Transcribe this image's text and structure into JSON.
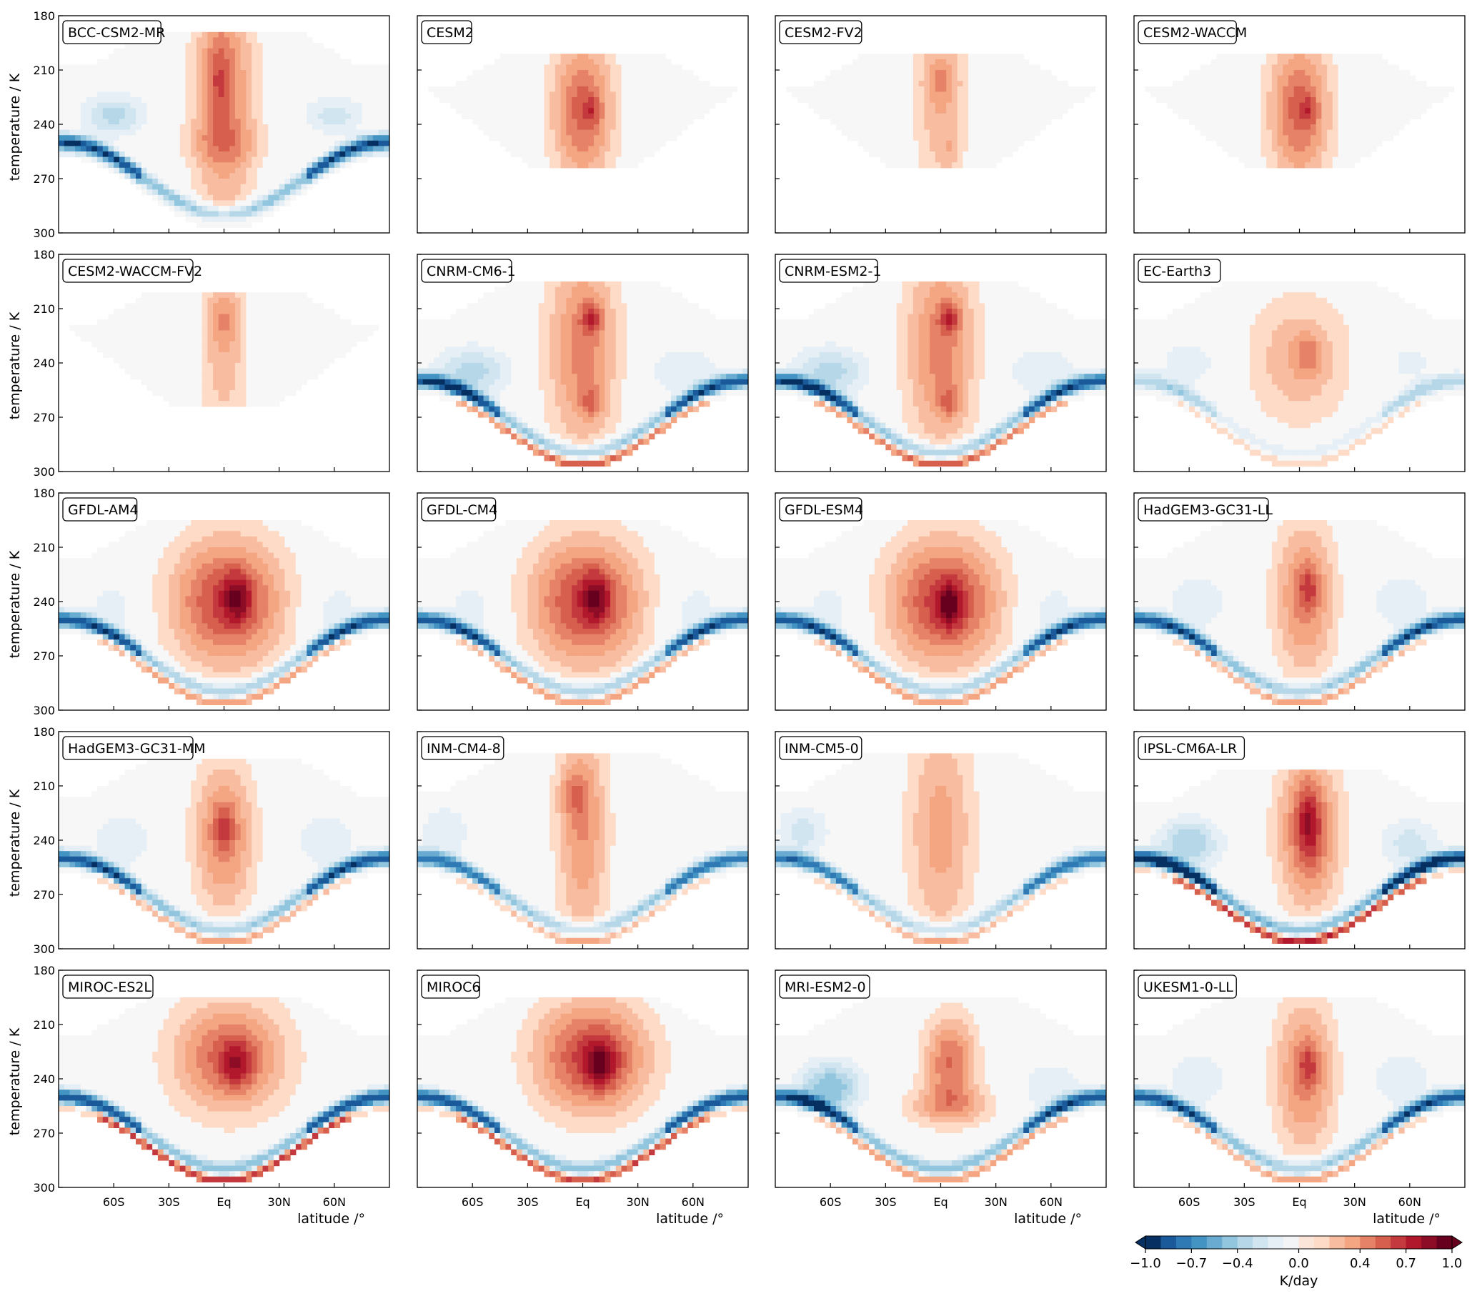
{
  "figure": {
    "ylabel": "temperature / K",
    "xlabel": "latitude /°",
    "cbar_label": "K/day",
    "cbar_ticks": [
      "−1.0",
      "−0.7",
      "−0.4",
      "0.0",
      "0.4",
      "0.7",
      "1.0"
    ]
  },
  "chart_data": {
    "type": "heatmap",
    "variable_units": "K/day",
    "x_ticks": [
      "60S",
      "30S",
      "Eq",
      "30N",
      "60N"
    ],
    "x_tick_values": [
      -60,
      -30,
      0,
      30,
      60
    ],
    "xlim": [
      -90,
      90
    ],
    "y_ticks": [
      "180",
      "210",
      "240",
      "270",
      "300"
    ],
    "y_tick_values": [
      180,
      210,
      240,
      270,
      300
    ],
    "ylim": [
      300,
      180
    ],
    "y_inverted": true,
    "color_levels": [
      -1.0,
      -0.9,
      -0.8,
      -0.7,
      -0.6,
      -0.5,
      -0.4,
      -0.3,
      -0.2,
      -0.1,
      0.0,
      0.1,
      0.2,
      0.3,
      0.4,
      0.5,
      0.6,
      0.7,
      0.8,
      0.9,
      1.0
    ],
    "colorbar_extend": "both",
    "colormap": [
      "#053061",
      "#1a5a9a",
      "#2f79b5",
      "#4393c3",
      "#6aabd1",
      "#92c5de",
      "#b6d7e8",
      "#d1e5f0",
      "#e6eff5",
      "#f2f4f6",
      "#f7f7f7",
      "#fbe5d9",
      "#fddbc7",
      "#f8bda1",
      "#f4a582",
      "#e58267",
      "#d6604d",
      "#c4393d",
      "#b2182b",
      "#8c0d25",
      "#67001f"
    ],
    "panels": [
      {
        "model": "BCC-CSM2-MR",
        "anomaly": [
          [
            0,
            225,
            12,
            50,
            0.45
          ],
          [
            -3,
            215,
            5,
            15,
            0.2
          ],
          [
            0,
            250,
            18,
            8,
            0.15
          ],
          [
            -60,
            235,
            12,
            8,
            -0.35
          ],
          [
            60,
            235,
            12,
            8,
            -0.25
          ]
        ],
        "boundary_cooling": 0.9,
        "boundary_heating": 0.0,
        "cap_top": 188,
        "tropical_bottom": 297
      },
      {
        "model": "CESM2",
        "anomaly": [
          [
            0,
            232,
            12,
            28,
            0.55
          ],
          [
            5,
            232,
            3,
            5,
            0.2
          ]
        ],
        "boundary_cooling": 0.0,
        "boundary_heating": 0.0,
        "cap_top": 200,
        "tropical_bottom": 263
      },
      {
        "model": "CESM2-FV2",
        "anomaly": [
          [
            0,
            225,
            10,
            38,
            0.3
          ],
          [
            0,
            215,
            6,
            8,
            0.15
          ],
          [
            5,
            255,
            4,
            8,
            0.1
          ]
        ],
        "boundary_cooling": 0.0,
        "boundary_heating": 0.0,
        "cap_top": 200,
        "tropical_bottom": 263
      },
      {
        "model": "CESM2-WACCM",
        "anomaly": [
          [
            0,
            232,
            12,
            28,
            0.55
          ],
          [
            5,
            232,
            3,
            5,
            0.2
          ]
        ],
        "boundary_cooling": 0.0,
        "boundary_heating": 0.0,
        "cap_top": 200,
        "tropical_bottom": 263
      },
      {
        "model": "CESM2-WACCM-FV2",
        "anomaly": [
          [
            0,
            228,
            9,
            38,
            0.3
          ],
          [
            0,
            215,
            5,
            8,
            0.15
          ]
        ],
        "boundary_cooling": 0.0,
        "boundary_heating": 0.0,
        "cap_top": 200,
        "tropical_bottom": 263
      },
      {
        "model": "CNRM-CM6-1",
        "anomaly": [
          [
            0,
            232,
            14,
            40,
            0.45
          ],
          [
            5,
            215,
            4,
            6,
            0.35
          ],
          [
            5,
            262,
            4,
            6,
            0.25
          ],
          [
            -60,
            245,
            14,
            10,
            -0.35
          ],
          [
            55,
            245,
            14,
            10,
            -0.2
          ]
        ],
        "boundary_cooling": 0.85,
        "boundary_heating": 0.6,
        "cap_top": 195,
        "tropical_bottom": 297
      },
      {
        "model": "CNRM-ESM2-1",
        "anomaly": [
          [
            0,
            232,
            14,
            40,
            0.45
          ],
          [
            5,
            215,
            4,
            6,
            0.35
          ],
          [
            5,
            262,
            4,
            6,
            0.25
          ],
          [
            -60,
            245,
            14,
            10,
            -0.35
          ],
          [
            55,
            245,
            14,
            10,
            -0.2
          ]
        ],
        "boundary_cooling": 0.85,
        "boundary_heating": 0.6,
        "cap_top": 195,
        "tropical_bottom": 297
      },
      {
        "model": "EC-Earth3",
        "anomaly": [
          [
            0,
            238,
            20,
            25,
            0.3
          ],
          [
            5,
            235,
            5,
            8,
            0.2
          ],
          [
            -60,
            240,
            15,
            12,
            -0.15
          ],
          [
            60,
            240,
            15,
            12,
            -0.12
          ]
        ],
        "boundary_cooling": 0.35,
        "boundary_heating": 0.2,
        "cap_top": 195,
        "tropical_bottom": 297
      },
      {
        "model": "GFDL-AM4",
        "anomaly": [
          [
            2,
            240,
            22,
            25,
            0.65
          ],
          [
            7,
            238,
            5,
            9,
            0.35
          ],
          [
            -60,
            245,
            12,
            15,
            -0.15
          ],
          [
            60,
            245,
            12,
            15,
            -0.15
          ]
        ],
        "boundary_cooling": 0.85,
        "boundary_heating": 0.45,
        "cap_top": 195,
        "tropical_bottom": 297
      },
      {
        "model": "GFDL-CM4",
        "anomaly": [
          [
            2,
            240,
            22,
            25,
            0.65
          ],
          [
            7,
            238,
            5,
            9,
            0.35
          ],
          [
            -60,
            245,
            12,
            15,
            -0.15
          ],
          [
            60,
            245,
            12,
            15,
            -0.15
          ]
        ],
        "boundary_cooling": 0.85,
        "boundary_heating": 0.45,
        "cap_top": 195,
        "tropical_bottom": 297
      },
      {
        "model": "GFDL-ESM4",
        "anomaly": [
          [
            2,
            240,
            22,
            25,
            0.65
          ],
          [
            5,
            242,
            5,
            9,
            0.35
          ],
          [
            -60,
            245,
            12,
            15,
            -0.15
          ],
          [
            60,
            245,
            12,
            15,
            -0.15
          ]
        ],
        "boundary_cooling": 0.85,
        "boundary_heating": 0.45,
        "cap_top": 195,
        "tropical_bottom": 297
      },
      {
        "model": "HadGEM3-GC31-LL",
        "anomaly": [
          [
            3,
            238,
            12,
            30,
            0.45
          ],
          [
            5,
            232,
            4,
            8,
            0.25
          ],
          [
            -55,
            240,
            15,
            15,
            -0.15
          ],
          [
            55,
            240,
            15,
            15,
            -0.15
          ]
        ],
        "boundary_cooling": 0.85,
        "boundary_heating": 0.4,
        "cap_top": 195,
        "tropical_bottom": 297
      },
      {
        "model": "HadGEM3-GC31-MM",
        "anomaly": [
          [
            0,
            238,
            12,
            30,
            0.45
          ],
          [
            0,
            232,
            4,
            8,
            0.25
          ],
          [
            -55,
            240,
            15,
            15,
            -0.15
          ],
          [
            55,
            240,
            15,
            15,
            -0.15
          ]
        ],
        "boundary_cooling": 0.85,
        "boundary_heating": 0.4,
        "cap_top": 195,
        "tropical_bottom": 297
      },
      {
        "model": "INM-CM4-8",
        "anomaly": [
          [
            0,
            235,
            10,
            45,
            0.4
          ],
          [
            -5,
            215,
            6,
            10,
            0.2
          ],
          [
            -75,
            235,
            10,
            10,
            -0.2
          ],
          [
            55,
            240,
            12,
            12,
            -0.1
          ]
        ],
        "boundary_cooling": 0.75,
        "boundary_heating": 0.3,
        "cap_top": 192,
        "tropical_bottom": 297
      },
      {
        "model": "INM-CM5-0",
        "anomaly": [
          [
            0,
            235,
            13,
            45,
            0.35
          ],
          [
            -75,
            235,
            10,
            10,
            -0.25
          ],
          [
            65,
            240,
            12,
            12,
            -0.1
          ]
        ],
        "boundary_cooling": 0.75,
        "boundary_heating": 0.3,
        "cap_top": 192,
        "tropical_bottom": 297
      },
      {
        "model": "IPSL-CM6A-LR",
        "anomaly": [
          [
            5,
            235,
            12,
            30,
            0.55
          ],
          [
            5,
            230,
            4,
            14,
            0.3
          ],
          [
            -60,
            242,
            12,
            10,
            -0.4
          ],
          [
            60,
            242,
            12,
            10,
            -0.25
          ]
        ],
        "boundary_cooling": 1.0,
        "boundary_heating": 0.85,
        "cap_top": 200,
        "tropical_bottom": 297
      },
      {
        "model": "MIROC-ES2L",
        "anomaly": [
          [
            3,
            228,
            22,
            22,
            0.55
          ],
          [
            7,
            232,
            6,
            9,
            0.3
          ]
        ],
        "boundary_cooling": 0.9,
        "boundary_heating": 0.85,
        "cap_top": 195,
        "tropical_bottom": 299
      },
      {
        "model": "MIROC6",
        "anomaly": [
          [
            5,
            228,
            22,
            22,
            0.65
          ],
          [
            10,
            232,
            6,
            9,
            0.35
          ]
        ],
        "boundary_cooling": 0.9,
        "boundary_heating": 0.75,
        "cap_top": 195,
        "tropical_bottom": 299
      },
      {
        "model": "MRI-ESM2-0",
        "anomaly": [
          [
            5,
            230,
            10,
            18,
            0.5
          ],
          [
            5,
            255,
            18,
            8,
            0.3
          ],
          [
            -60,
            245,
            12,
            10,
            -0.5
          ],
          [
            60,
            245,
            12,
            10,
            -0.2
          ]
        ],
        "boundary_cooling": 0.85,
        "boundary_heating": 0.5,
        "cap_top": 195,
        "tropical_bottom": 297
      },
      {
        "model": "UKESM1-0-LL",
        "anomaly": [
          [
            3,
            238,
            12,
            30,
            0.45
          ],
          [
            5,
            232,
            4,
            8,
            0.25
          ],
          [
            -55,
            240,
            15,
            15,
            -0.15
          ],
          [
            55,
            240,
            15,
            15,
            -0.15
          ]
        ],
        "boundary_cooling": 0.85,
        "boundary_heating": 0.4,
        "cap_top": 195,
        "tropical_bottom": 297
      }
    ]
  }
}
